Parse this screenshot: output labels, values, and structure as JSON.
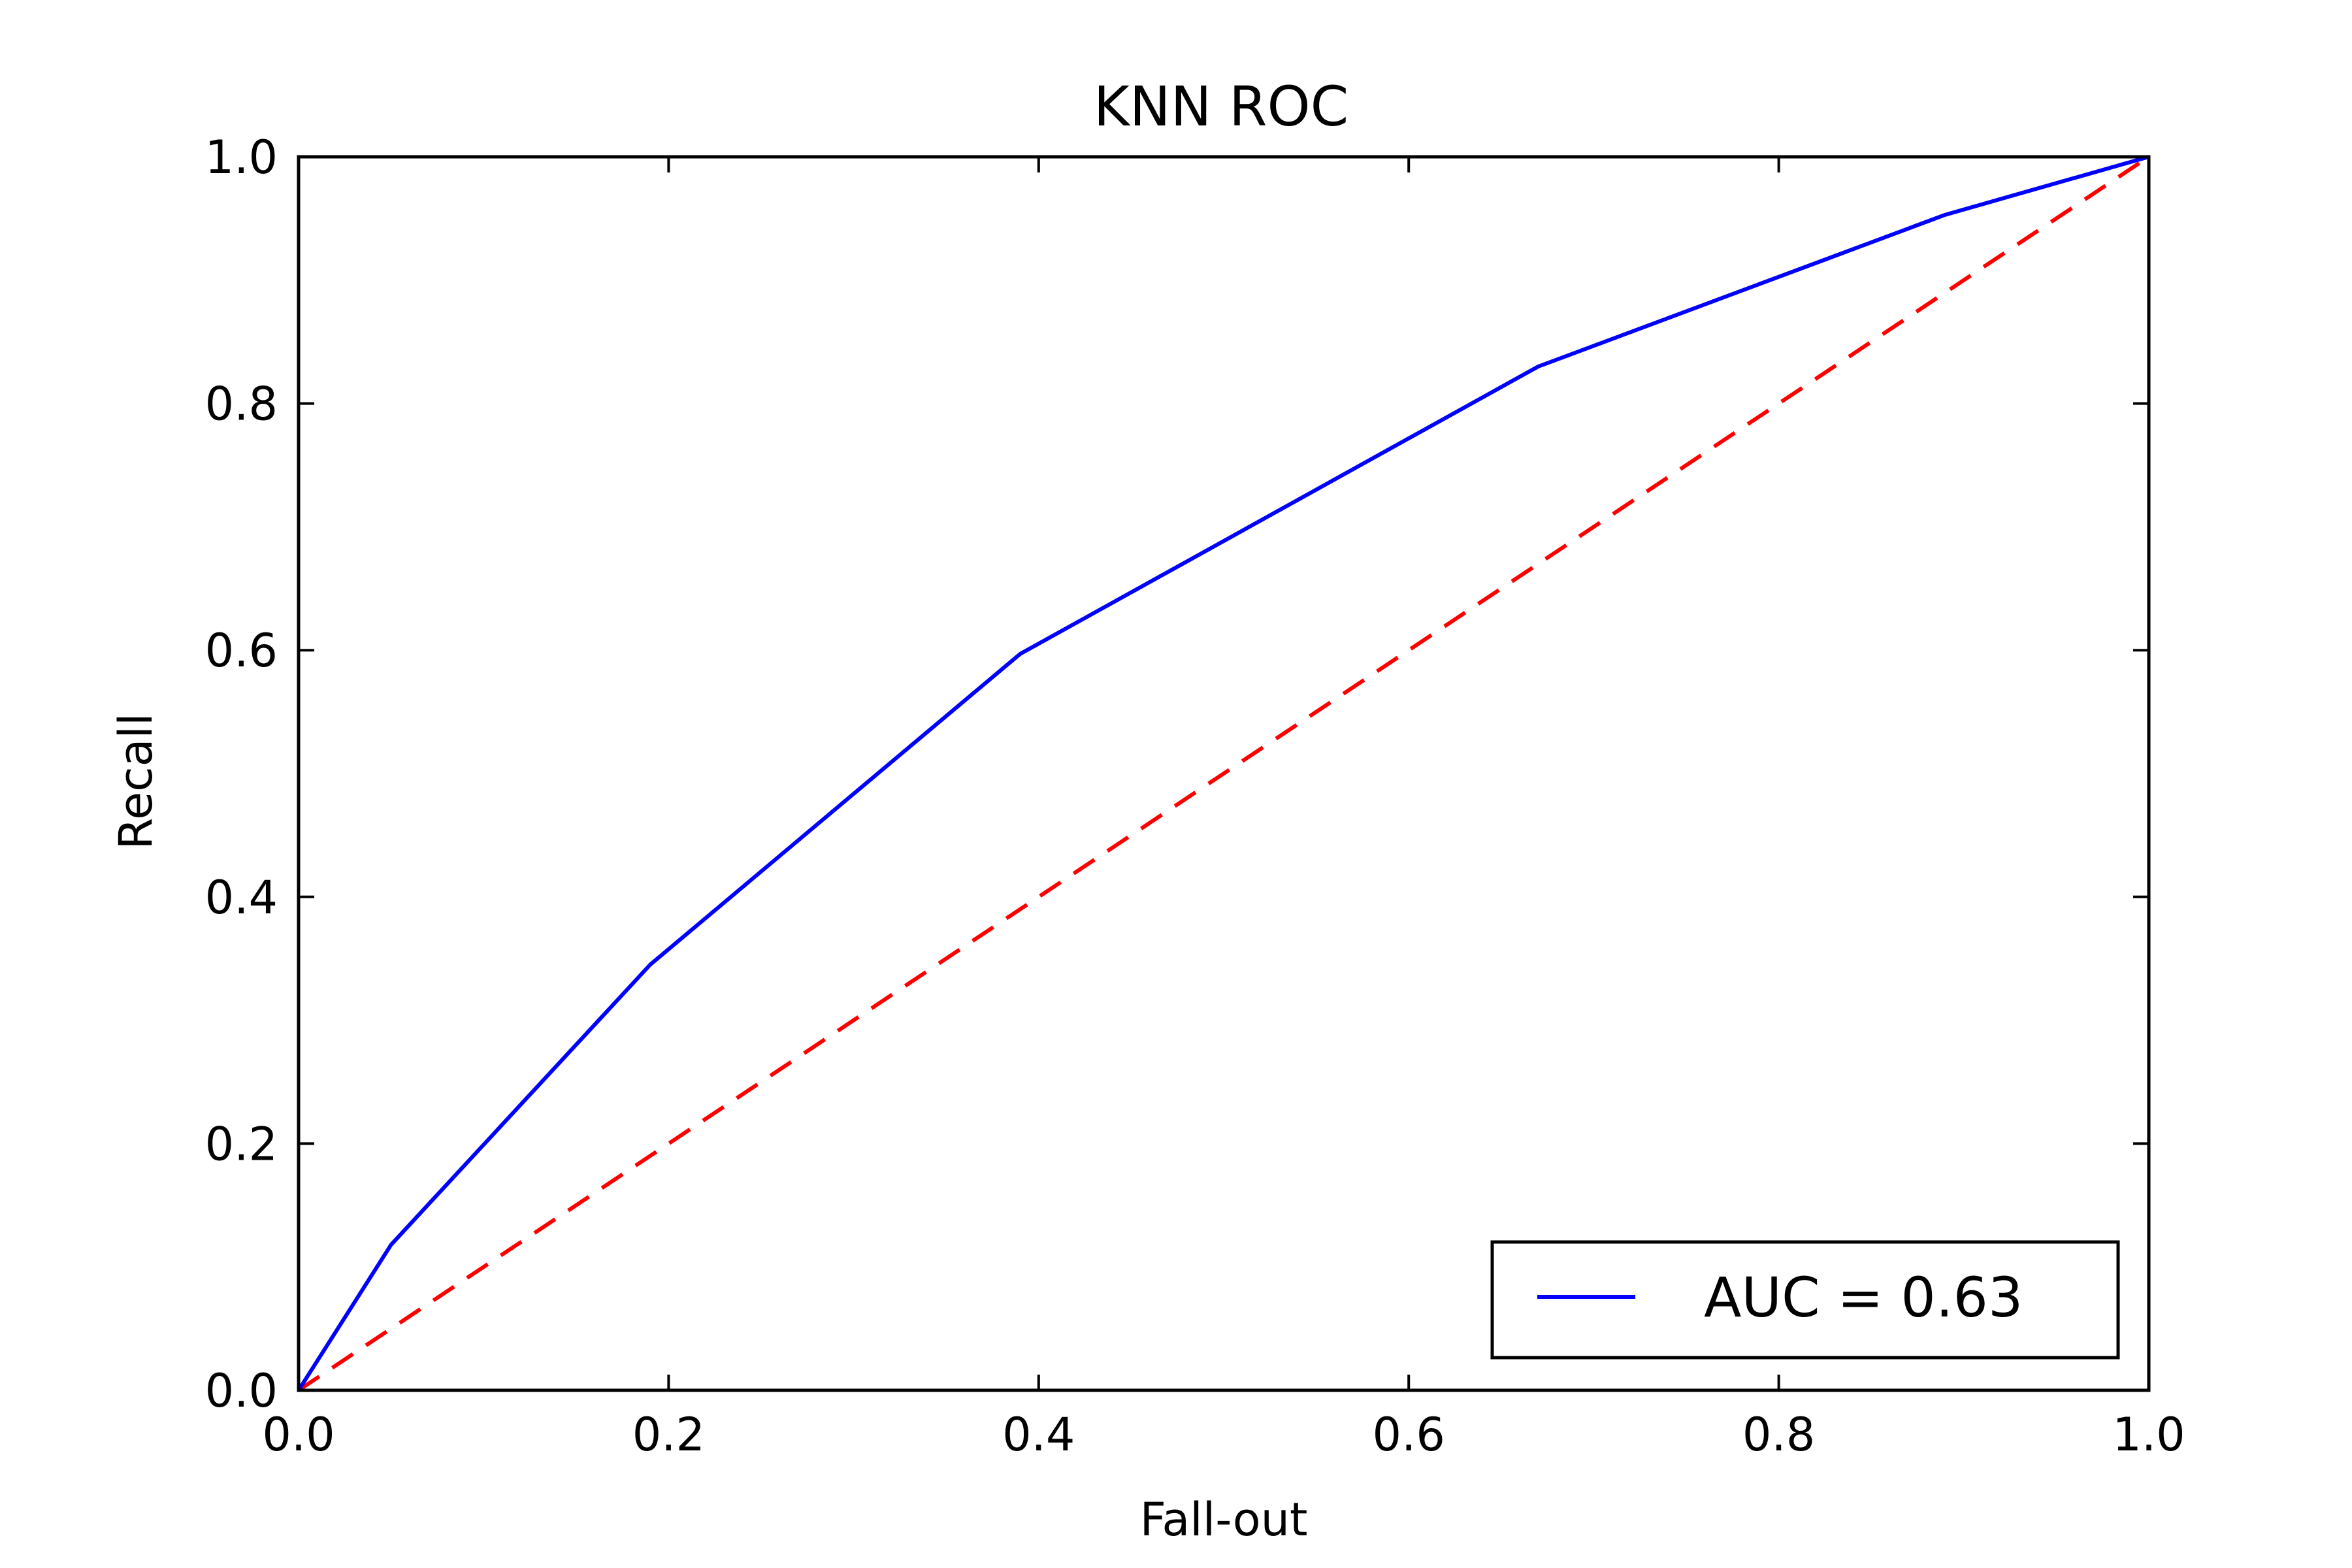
{
  "chart_data": {
    "type": "line",
    "title": "KNN ROC",
    "xlabel": "Fall-out",
    "ylabel": "Recall",
    "xlim": [
      0.0,
      1.0
    ],
    "ylim": [
      0.0,
      1.0
    ],
    "xticks": [
      "0.0",
      "0.2",
      "0.4",
      "0.6",
      "0.8",
      "1.0"
    ],
    "yticks": [
      "0.0",
      "0.2",
      "0.4",
      "0.6",
      "0.8",
      "1.0"
    ],
    "grid": false,
    "legend_position": "lower-right",
    "series": [
      {
        "name": "AUC = 0.63",
        "color": "#0000ff",
        "style": "solid",
        "x": [
          0.0,
          0.05,
          0.19,
          0.39,
          0.67,
          0.89,
          1.0
        ],
        "y": [
          0.0,
          0.118,
          0.345,
          0.597,
          0.83,
          0.953,
          1.0
        ]
      },
      {
        "color": "#ff0000",
        "style": "dashed",
        "x": [
          0.0,
          1.0
        ],
        "y": [
          0.0,
          1.0
        ]
      }
    ]
  }
}
